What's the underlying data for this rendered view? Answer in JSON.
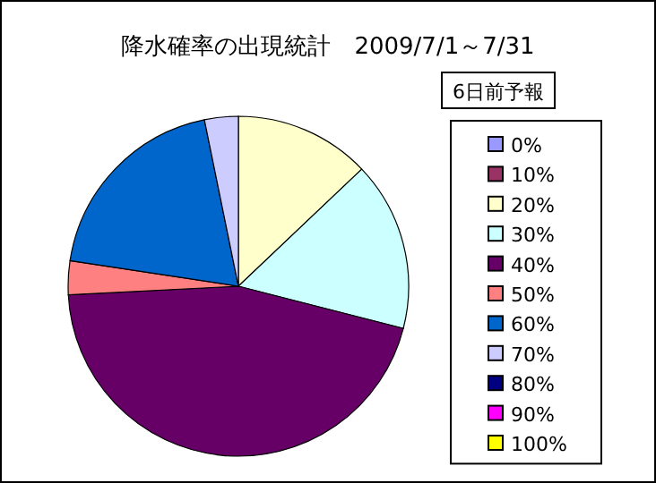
{
  "chart_data": {
    "type": "pie",
    "title": "降水確率の出現統計　2009/7/1～7/31",
    "legend_title": "6日前予報",
    "legend": "right",
    "categories": [
      "0%",
      "10%",
      "20%",
      "30%",
      "40%",
      "50%",
      "60%",
      "70%",
      "80%",
      "90%",
      "100%"
    ],
    "values": [
      0,
      0,
      12.9,
      16.1,
      45.2,
      3.2,
      19.4,
      3.2,
      0,
      0,
      0
    ],
    "colors": [
      "#9999ff",
      "#993366",
      "#ffffcc",
      "#ccffff",
      "#660066",
      "#ff8080",
      "#0066cc",
      "#ccccff",
      "#000080",
      "#ff00ff",
      "#ffff00"
    ]
  }
}
